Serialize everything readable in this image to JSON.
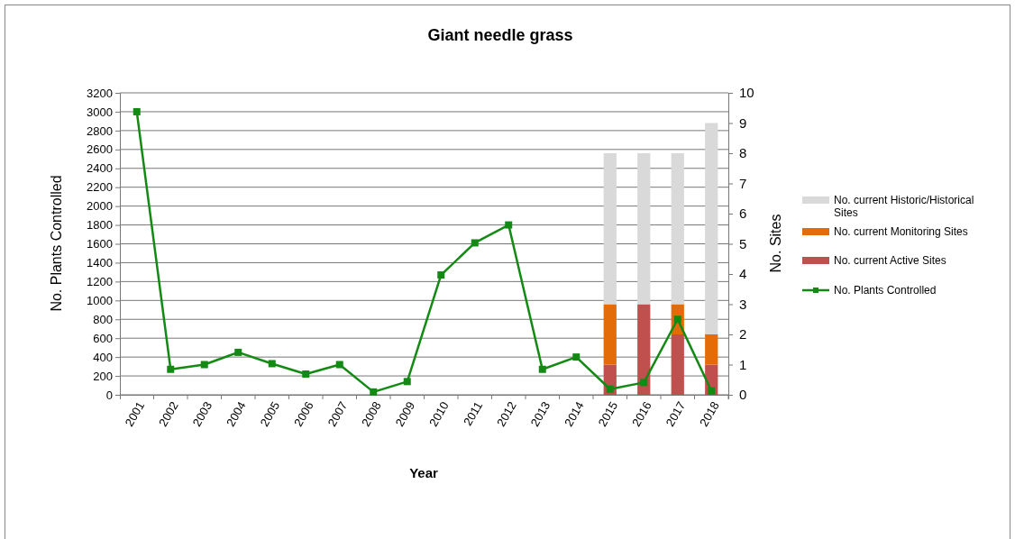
{
  "chart_data": {
    "type": "bar",
    "title": "Giant needle grass",
    "xlabel": "Year",
    "ylabel": "No. Plants Controlled",
    "y2label": "No. Sites",
    "categories": [
      "2001",
      "2002",
      "2003",
      "2004",
      "2005",
      "2006",
      "2007",
      "2008",
      "2009",
      "2010",
      "2011",
      "2012",
      "2013",
      "2014",
      "2015",
      "2016",
      "2017",
      "2018"
    ],
    "stacked": true,
    "grid": "y",
    "legend": "right",
    "marker": "square",
    "ylim": [
      0,
      3200
    ],
    "yticks": [
      0,
      200,
      400,
      600,
      800,
      1000,
      1200,
      1400,
      1600,
      1800,
      2000,
      2200,
      2400,
      2600,
      2800,
      3000,
      3200
    ],
    "y2lim": [
      0,
      10
    ],
    "y2ticks": [
      0,
      1,
      2,
      3,
      4,
      5,
      6,
      7,
      8,
      9,
      10
    ],
    "series": [
      {
        "name": "No. current Active Sites",
        "axis": "y2",
        "color": "#c0504d",
        "values": [
          null,
          null,
          null,
          null,
          null,
          null,
          null,
          null,
          null,
          null,
          null,
          null,
          null,
          null,
          1,
          3,
          2,
          1
        ]
      },
      {
        "name": "No. current Monitoring Sites",
        "axis": "y2",
        "color": "#e36c09",
        "values": [
          null,
          null,
          null,
          null,
          null,
          null,
          null,
          null,
          null,
          null,
          null,
          null,
          null,
          null,
          2,
          0,
          1,
          1
        ]
      },
      {
        "name": "No. current Historic/Historical Sites",
        "axis": "y2",
        "color": "#d9d9d9",
        "values": [
          null,
          null,
          null,
          null,
          null,
          null,
          null,
          null,
          null,
          null,
          null,
          null,
          null,
          null,
          5,
          5,
          5,
          7
        ]
      },
      {
        "name": "No. Plants Controlled",
        "type": "line",
        "axis": "y",
        "color": "#138a13",
        "values": [
          3000,
          270,
          320,
          450,
          330,
          220,
          320,
          30,
          140,
          1270,
          1610,
          1800,
          270,
          400,
          60,
          130,
          800,
          40
        ]
      }
    ]
  }
}
